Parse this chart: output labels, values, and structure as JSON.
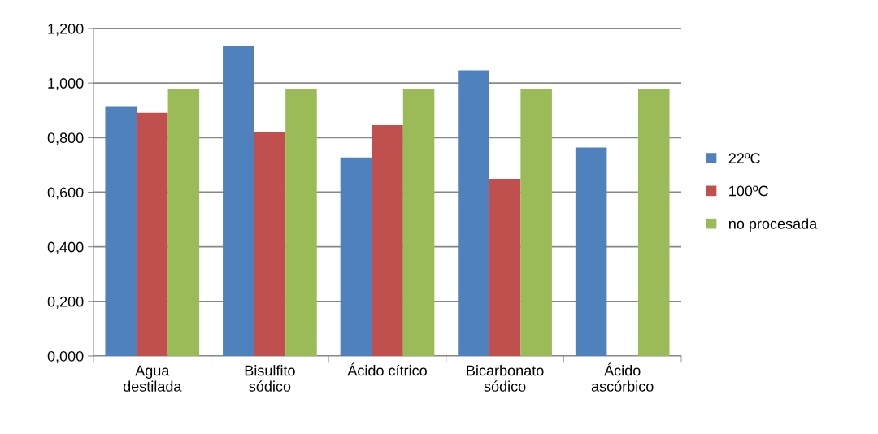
{
  "chart_data": {
    "type": "bar",
    "categories": [
      "Agua\ndestilada",
      "Bisulfito\nsódico",
      "Ácido cítrico",
      "Bicarbonato\nsódico",
      "Ácido\nascórbico"
    ],
    "series": [
      {
        "name": "22ºC",
        "color": "#4f81bd",
        "values": [
          0.913,
          1.136,
          0.727,
          1.047,
          0.764
        ]
      },
      {
        "name": "100ºC",
        "color": "#c0504d",
        "values": [
          0.891,
          0.821,
          0.846,
          0.649,
          null
        ]
      },
      {
        "name": "no procesada",
        "color": "#9bbb59",
        "values": [
          0.98,
          0.98,
          0.98,
          0.98,
          0.98
        ]
      }
    ],
    "ylim": [
      0,
      1.2
    ],
    "yticks": [
      {
        "value": 0,
        "label": "0,000"
      },
      {
        "value": 0.2,
        "label": "0,200"
      },
      {
        "value": 0.4,
        "label": "0,400"
      },
      {
        "value": 0.6,
        "label": "0,600"
      },
      {
        "value": 0.8,
        "label": "0,800"
      },
      {
        "value": 1.0,
        "label": "1,000"
      },
      {
        "value": 1.2,
        "label": "1,200"
      }
    ],
    "grid": "y",
    "legend": "right"
  }
}
